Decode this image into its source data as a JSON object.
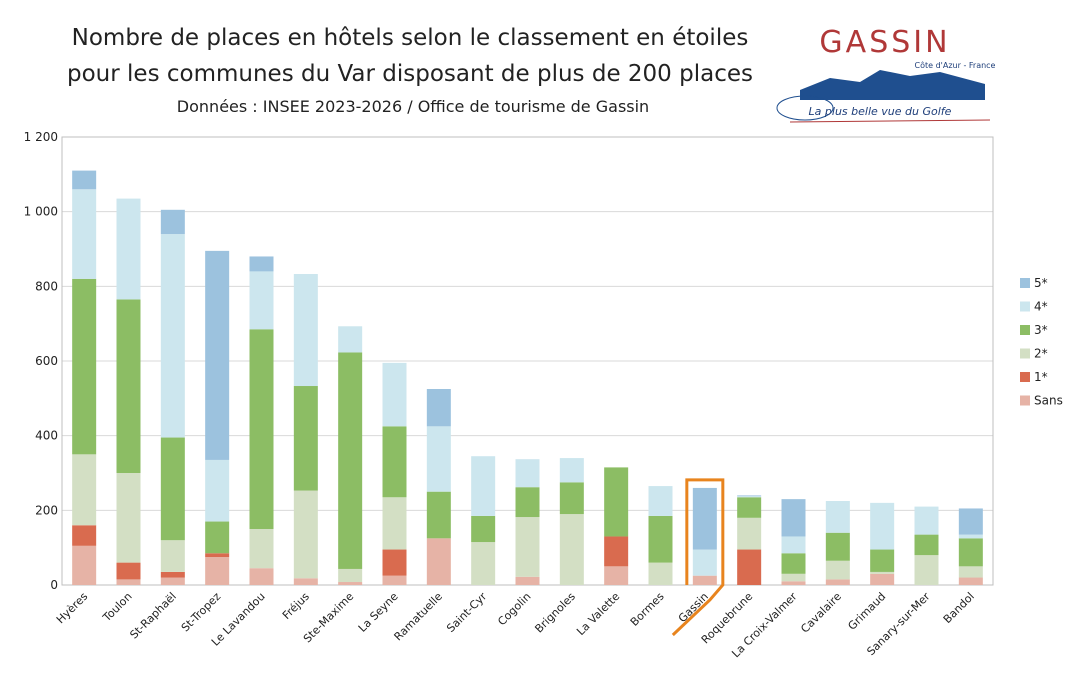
{
  "chart_data": {
    "type": "stacked_bar",
    "title": [
      "Nombre de places en hôtels selon le classement en étoiles",
      "pour les communes du Var disposant de plus de 200 places"
    ],
    "subtitle": "Données : INSEE 2023-2026 / Office de tourisme de Gassin",
    "categories": [
      "Hyères",
      "Toulon",
      "St-Raphaël",
      "St-Tropez",
      "Le Lavandou",
      "Fréjus",
      "Ste-Maxime",
      "La Seyne",
      "Ramatuelle",
      "Saint-Cyr",
      "Cogolin",
      "Brignoles",
      "La Valette",
      "Bormes",
      "Gassin",
      "Roquebrune",
      "La Croix-Valmer",
      "Cavalaire",
      "Grimaud",
      "Sanary-sur-Mer",
      "Bandol"
    ],
    "series": [
      {
        "name": "Sans",
        "color": "#e6b3a6",
        "values": [
          105,
          15,
          20,
          75,
          45,
          18,
          8,
          25,
          125,
          0,
          22,
          0,
          50,
          0,
          25,
          0,
          10,
          15,
          30,
          0,
          20
        ]
      },
      {
        "name": "1*",
        "color": "#d96b4f",
        "values": [
          55,
          45,
          15,
          10,
          0,
          0,
          0,
          70,
          0,
          0,
          0,
          0,
          80,
          0,
          0,
          95,
          0,
          0,
          0,
          0,
          0
        ]
      },
      {
        "name": "2*",
        "color": "#d3dfc4",
        "values": [
          190,
          240,
          85,
          0,
          105,
          235,
          35,
          140,
          0,
          115,
          160,
          190,
          0,
          60,
          0,
          85,
          20,
          50,
          5,
          80,
          30
        ]
      },
      {
        "name": "3*",
        "color": "#8cbd64",
        "values": [
          470,
          465,
          275,
          85,
          535,
          280,
          580,
          190,
          125,
          70,
          80,
          85,
          185,
          125,
          0,
          55,
          55,
          75,
          60,
          55,
          75
        ]
      },
      {
        "name": "4*",
        "color": "#cce6ee",
        "values": [
          240,
          270,
          545,
          165,
          155,
          300,
          70,
          170,
          175,
          160,
          75,
          65,
          0,
          80,
          70,
          3,
          45,
          85,
          125,
          75,
          10
        ]
      },
      {
        "name": "5*",
        "color": "#9cc2de",
        "values": [
          50,
          0,
          65,
          560,
          40,
          0,
          0,
          0,
          100,
          0,
          0,
          0,
          0,
          0,
          165,
          2,
          100,
          0,
          0,
          0,
          70
        ]
      }
    ],
    "ylim": [
      0,
      1200
    ],
    "yticks": [
      0,
      200,
      400,
      600,
      800,
      {
        "value": 1000,
        "label": "1 000"
      },
      {
        "value": 1200,
        "label": "1 200"
      }
    ],
    "grid": true,
    "legend": "right",
    "highlight": "Gassin"
  },
  "logo": {
    "name": "GASSIN",
    "region": "Côte d'Azur - France",
    "slogan": "La plus belle vue du Golfe"
  }
}
